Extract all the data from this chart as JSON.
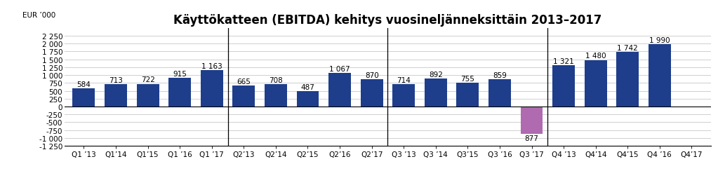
{
  "title": "Käyttökatteen (EBITDA) kehitys vuosineljänneksittäin 2013–2017",
  "ylabel": "EUR ’000",
  "categories": [
    "Q1 ’13",
    "Q1’14",
    "Q1’15",
    "Q1 ’16",
    "Q1 ’17",
    "Q2’13",
    "Q2’14",
    "Q2’15",
    "Q2’16",
    "Q2’17",
    "Q3 ’13",
    "Q3 ’14",
    "Q3’15",
    "Q3 ’16",
    "Q3 ’17",
    "Q4 ’13",
    "Q4’14",
    "Q4’15",
    "Q4 ’16",
    "Q4’17"
  ],
  "values": [
    584,
    713,
    722,
    915,
    1163,
    665,
    708,
    487,
    1067,
    870,
    714,
    892,
    755,
    859,
    -877,
    1321,
    1480,
    1742,
    1990,
    0
  ],
  "bar_colors": [
    "#1e3e8c",
    "#1e3e8c",
    "#1e3e8c",
    "#1e3e8c",
    "#1e3e8c",
    "#1e3e8c",
    "#1e3e8c",
    "#1e3e8c",
    "#1e3e8c",
    "#1e3e8c",
    "#1e3e8c",
    "#1e3e8c",
    "#1e3e8c",
    "#1e3e8c",
    "#b06ab0",
    "#1e3e8c",
    "#1e3e8c",
    "#1e3e8c",
    "#1e3e8c",
    "#1e3e8c"
  ],
  "ylim": [
    -1250,
    2500
  ],
  "yticks": [
    -1250,
    -1000,
    -750,
    -500,
    -250,
    0,
    250,
    500,
    750,
    1000,
    1250,
    1500,
    1750,
    2000,
    2250
  ],
  "ytick_labels": [
    "-1 250",
    "-1 000",
    "-750",
    "-500",
    "-250",
    "0",
    "250",
    "500",
    "750",
    "1 000",
    "1 250",
    "1 500",
    "1 750",
    "2 000",
    "2 250"
  ],
  "dividers": [
    4.5,
    9.5,
    14.5
  ],
  "background_color": "#ffffff",
  "grid_color": "#c8c8c8",
  "title_fontsize": 12,
  "label_fontsize": 7.5,
  "value_fontsize": 7.5,
  "bar_width": 0.7
}
